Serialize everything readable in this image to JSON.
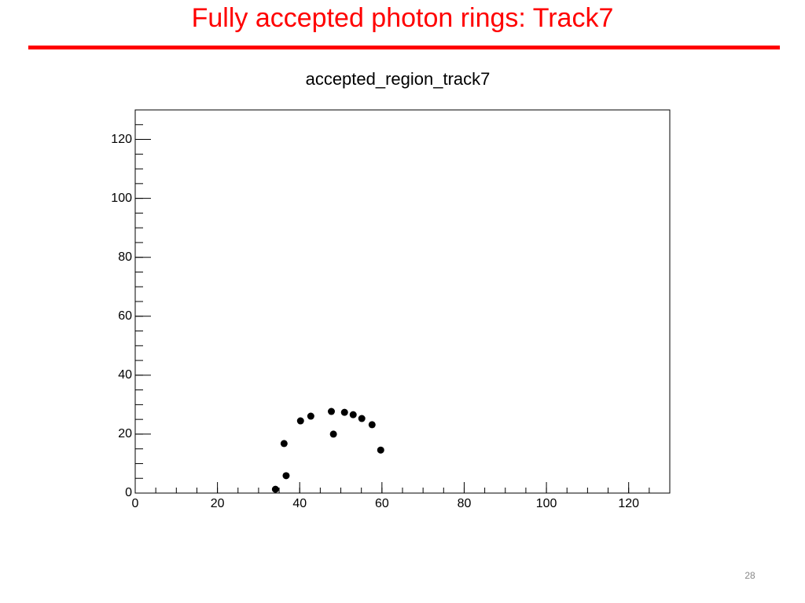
{
  "slide_title": "Fully accepted photon rings: Track7",
  "page_number": "28",
  "chart_data": {
    "type": "scatter",
    "title": "accepted_region_track7",
    "series": [
      {
        "color": "#000000",
        "x": [
          34.1,
          36.2,
          36.7,
          40.2,
          42.7,
          47.7,
          48.2,
          50.9,
          53.0,
          55.1,
          57.6,
          59.7
        ],
        "values": [
          1.3,
          16.8,
          5.9,
          24.5,
          26.1,
          27.7,
          20.0,
          27.4,
          26.6,
          25.3,
          23.2,
          14.6
        ]
      }
    ],
    "xlim": [
      0,
      130
    ],
    "ylim": [
      0,
      130
    ],
    "xticks": [
      0,
      20,
      40,
      60,
      80,
      100,
      120
    ],
    "yticks": [
      0,
      20,
      40,
      60,
      80,
      100,
      120
    ]
  }
}
